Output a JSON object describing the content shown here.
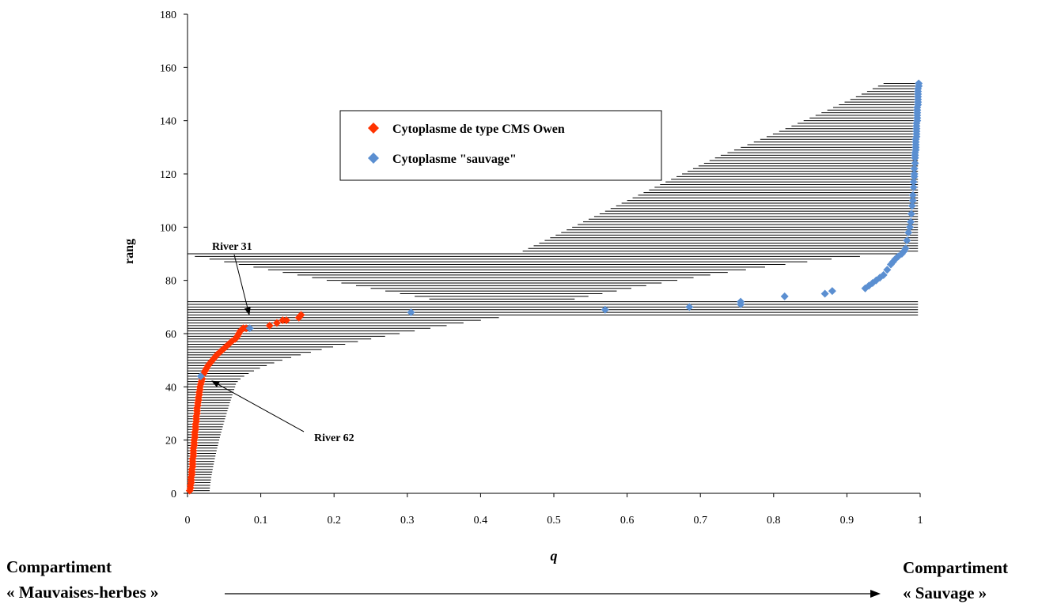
{
  "chart_data": {
    "type": "scatter",
    "title": "",
    "xlabel": "q",
    "ylabel": "rang",
    "xlim": [
      0,
      1
    ],
    "ylim": [
      0,
      180
    ],
    "xticks": [
      0,
      0.1,
      0.2,
      0.3,
      0.4,
      0.5,
      0.6,
      0.7,
      0.8,
      0.9,
      1
    ],
    "yticks": [
      0,
      20,
      40,
      60,
      80,
      100,
      120,
      140,
      160,
      180
    ],
    "grid": false,
    "legend_position": "upper-center",
    "series": [
      {
        "name": "Cytoplasme de type CMS Owen",
        "color": "#ff3300",
        "marker": "diamond",
        "x": [
          0.003,
          0.004,
          0.004,
          0.005,
          0.005,
          0.005,
          0.006,
          0.006,
          0.006,
          0.007,
          0.007,
          0.007,
          0.007,
          0.008,
          0.008,
          0.008,
          0.008,
          0.009,
          0.009,
          0.009,
          0.01,
          0.01,
          0.01,
          0.011,
          0.011,
          0.011,
          0.012,
          0.012,
          0.012,
          0.013,
          0.013,
          0.013,
          0.014,
          0.014,
          0.015,
          0.015,
          0.016,
          0.016,
          0.017,
          0.017,
          0.018,
          0.019,
          0.02,
          0.022,
          0.024,
          0.026,
          0.028,
          0.031,
          0.034,
          0.037,
          0.04,
          0.044,
          0.048,
          0.052,
          0.056,
          0.06,
          0.065,
          0.068,
          0.07,
          0.072,
          0.076,
          0.08,
          0.112,
          0.122,
          0.13,
          0.135,
          0.152,
          0.155
        ],
        "y": [
          1,
          2,
          3,
          4,
          5,
          6,
          7,
          8,
          9,
          10,
          11,
          12,
          13,
          14,
          15,
          16,
          17,
          18,
          19,
          20,
          21,
          22,
          23,
          24,
          25,
          26,
          27,
          28,
          29,
          30,
          31,
          32,
          33,
          34,
          35,
          36,
          37,
          38,
          39,
          40,
          41,
          42,
          43,
          45,
          46,
          47,
          48,
          49,
          50,
          51,
          52,
          53,
          54,
          55,
          56,
          57,
          58,
          59,
          60,
          61,
          62,
          62,
          63,
          64,
          65,
          65,
          66,
          67
        ]
      },
      {
        "name": "Cytoplasme \"sauvage\"",
        "color": "#5b8fd1",
        "marker": "diamond",
        "x": [
          0.018,
          0.085,
          0.305,
          0.57,
          0.685,
          0.755,
          0.755,
          0.815,
          0.87,
          0.88,
          0.925,
          0.93,
          0.935,
          0.94,
          0.945,
          0.95,
          0.955,
          0.96,
          0.963,
          0.966,
          0.97,
          0.975,
          0.978,
          0.98,
          0.982,
          0.984,
          0.986,
          0.987,
          0.988,
          0.989,
          0.99,
          0.99,
          0.991,
          0.991,
          0.992,
          0.992,
          0.992,
          0.993,
          0.993,
          0.993,
          0.993,
          0.994,
          0.994,
          0.994,
          0.994,
          0.994,
          0.995,
          0.995,
          0.995,
          0.995,
          0.995,
          0.995,
          0.996,
          0.996,
          0.996,
          0.996,
          0.996,
          0.996,
          0.997,
          0.997,
          0.997,
          0.997,
          0.997,
          0.997,
          0.997,
          0.998,
          0.998
        ],
        "y": [
          44,
          62,
          68,
          69,
          70,
          71,
          72,
          74,
          75,
          76,
          77,
          78,
          79,
          80,
          81,
          82,
          84,
          86,
          87,
          88,
          89,
          90,
          91,
          92,
          95,
          98,
          100,
          102,
          105,
          108,
          110,
          112,
          115,
          117,
          119,
          120,
          122,
          124,
          126,
          127,
          128,
          129,
          130,
          131,
          132,
          133,
          134,
          135,
          136,
          137,
          138,
          139,
          140,
          141,
          142,
          143,
          144,
          145,
          146,
          147,
          148,
          149,
          150,
          151,
          152,
          153,
          154
        ]
      }
    ],
    "interval_bars": {
      "name": "",
      "color": "#000000"
    },
    "annotations": [
      {
        "text": "River 31"
      },
      {
        "text": "River 62"
      }
    ]
  },
  "bottom_labels": {
    "left_line1": "Compartiment",
    "left_line2": "« Mauvaises-herbes »",
    "right_line1": "Compartiment",
    "right_line2": "« Sauvage »"
  }
}
